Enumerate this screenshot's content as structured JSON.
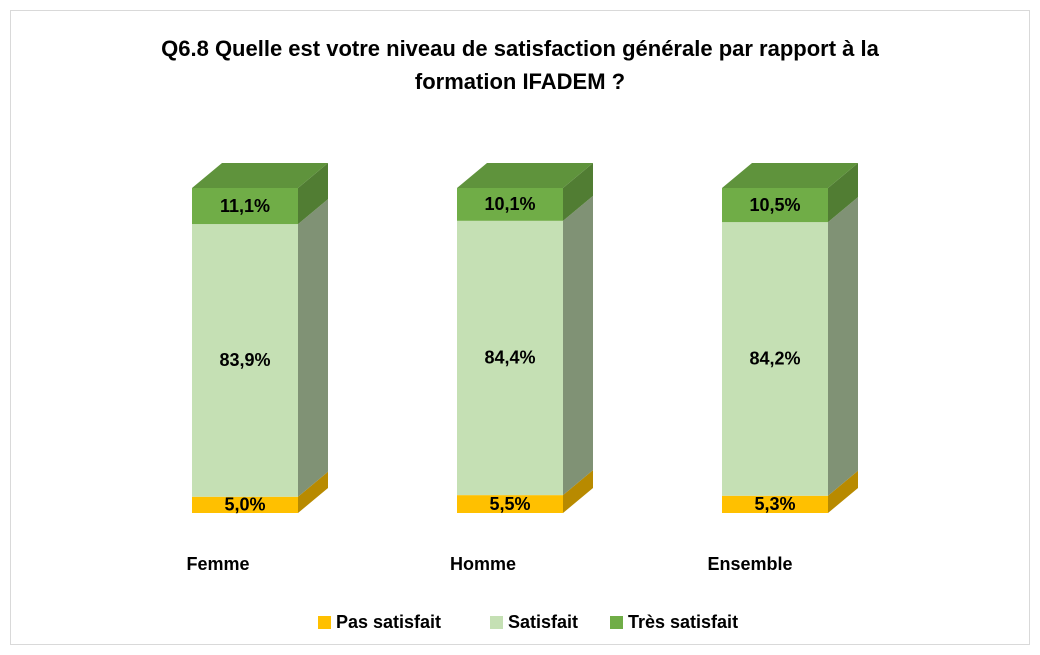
{
  "chart_data": {
    "type": "bar3d-stacked",
    "title": "Q6.8 Quelle est votre niveau de satisfaction générale par rapport à la formation IFADEM ?",
    "categories": [
      "Femme",
      "Homme",
      "Ensemble"
    ],
    "series": [
      {
        "name": "Pas satisfait",
        "color": "#ffc000",
        "values": [
          5.0,
          5.5,
          5.3
        ],
        "value_labels": [
          "5,0%",
          "5,5%",
          "5,3%"
        ]
      },
      {
        "name": "Satisfait",
        "color": "#c5e0b4",
        "values": [
          83.9,
          84.4,
          84.2
        ],
        "value_labels": [
          "83,9%",
          "84,4%",
          "84,2%"
        ]
      },
      {
        "name": "Très satisfait",
        "color": "#70ad47",
        "values": [
          11.1,
          10.1,
          10.5
        ],
        "value_labels": [
          "11,1%",
          "10,1%",
          "10,5%"
        ]
      }
    ],
    "legend": "bottom"
  }
}
